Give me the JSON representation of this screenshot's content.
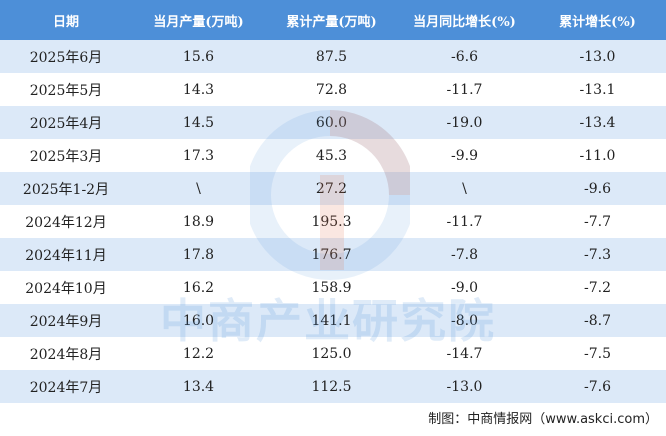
{
  "table": {
    "header": [
      "日期",
      "当月产量(万吨)",
      "累计产量(万吨)",
      "当月同比增长(%)",
      "累计增长(%)"
    ],
    "rows": [
      [
        "2025年6月",
        "15.6",
        "87.5",
        "-6.6",
        "-13.0"
      ],
      [
        "2025年5月",
        "14.3",
        "72.8",
        "-11.7",
        "-13.1"
      ],
      [
        "2025年4月",
        "14.5",
        "60.0",
        "-19.0",
        "-13.4"
      ],
      [
        "2025年3月",
        "17.3",
        "45.3",
        "-9.9",
        "-11.0"
      ],
      [
        "2025年1-2月",
        "\\",
        "27.2",
        "\\",
        "-9.6"
      ],
      [
        "2024年12月",
        "18.9",
        "195.3",
        "-11.7",
        "-7.7"
      ],
      [
        "2024年11月",
        "17.8",
        "176.7",
        "-7.8",
        "-7.3"
      ],
      [
        "2024年10月",
        "16.2",
        "158.9",
        "-9.0",
        "-7.2"
      ],
      [
        "2024年9月",
        "16.0",
        "141.1",
        "-8.0",
        "-8.7"
      ],
      [
        "2024年8月",
        "12.2",
        "125.0",
        "-14.7",
        "-7.5"
      ],
      [
        "2024年7月",
        "13.4",
        "112.5",
        "-13.0",
        "-7.6"
      ]
    ]
  },
  "watermark": "中商产业研究院",
  "footer": "制图：中商情报网（www.askci.com）"
}
